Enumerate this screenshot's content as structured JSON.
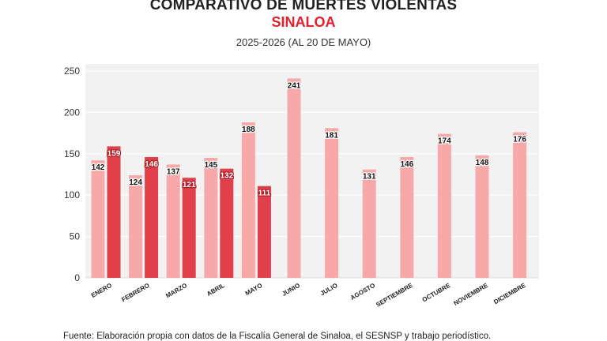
{
  "header": {
    "title": "COMPARATIVO DE MUERTES VIOLENTAS",
    "subtitle": "SINALOA",
    "period": "2025-2026 (AL 20 DE MAYO)"
  },
  "footer": {
    "source": "Fuente: Elaboración propia con datos de la Fiscalía General de Sinaloa, el SESNSP y trabajo periodístico."
  },
  "colors": {
    "series_2025": "#f7a8a8",
    "series_2026": "#e0404a",
    "plot_bg": "#f2f2f2",
    "grid": "#ffffff"
  },
  "chart_data": {
    "type": "bar",
    "title": "COMPARATIVO DE MUERTES VIOLENTAS",
    "subtitle": "SINALOA",
    "categories": [
      "ENERO",
      "FEBRERO",
      "MARZO",
      "ABRIL",
      "MAYO",
      "JUNIO",
      "JULIO",
      "AGOSTO",
      "SEPTIEMBRE",
      "OCTUBRE",
      "NOVIEMBRE",
      "DICIEMBRE"
    ],
    "series": [
      {
        "values": [
          142,
          124,
          137,
          145,
          188,
          241,
          181,
          131,
          146,
          174,
          148,
          176
        ]
      },
      {
        "values": [
          159,
          146,
          121,
          132,
          111,
          null,
          null,
          null,
          null,
          null,
          null,
          null
        ]
      }
    ],
    "yticks": [
      0,
      50,
      100,
      150,
      200,
      250
    ],
    "ylim": [
      0,
      250
    ],
    "grid": true,
    "xlabel": "",
    "ylabel": ""
  }
}
